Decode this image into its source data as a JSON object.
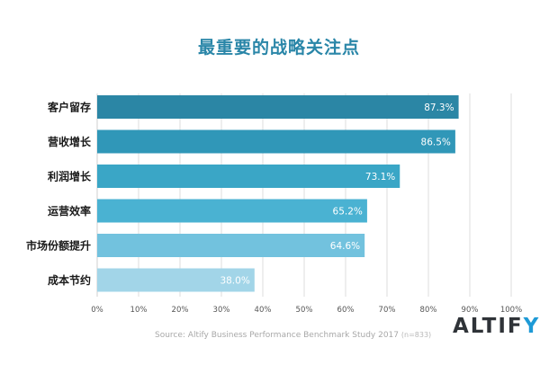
{
  "chart_data": {
    "type": "bar",
    "orientation": "horizontal",
    "title": "最重要的战略关注点",
    "categories": [
      "客户留存",
      "营收增长",
      "利润增长",
      "运营效率",
      "市场份额提升",
      "成本节约"
    ],
    "values": [
      87.3,
      86.5,
      73.1,
      65.2,
      64.6,
      38.0
    ],
    "value_labels": [
      "87.3%",
      "86.5%",
      "73.1%",
      "65.2%",
      "64.6%",
      "38.0%"
    ],
    "xlim": [
      0,
      100
    ],
    "x_ticks": [
      "0%",
      "10%",
      "20%",
      "30%",
      "40%",
      "50%",
      "60%",
      "70%",
      "80%",
      "90%",
      "100%"
    ],
    "grid": true,
    "bar_colors": [
      "#2b86a5",
      "#3097b8",
      "#3aa6c6",
      "#4ab2d2",
      "#72c2de",
      "#a2d5e8"
    ],
    "xlabel": "",
    "ylabel": ""
  },
  "source": {
    "text": "Source: Altify Business Performance Benchmark Study 2017",
    "n": "(n=833)"
  },
  "logo": {
    "main": "ALTIF",
    "accent": "Y"
  }
}
